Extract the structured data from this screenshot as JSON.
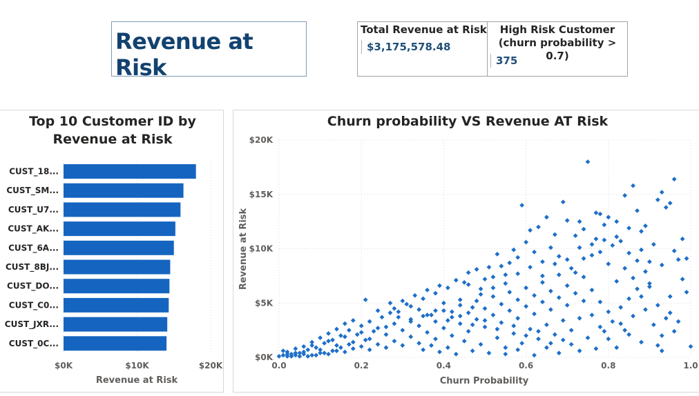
{
  "header": {
    "title": "Revenue at Risk"
  },
  "kpis": [
    {
      "label": "Total Revenue at Risk",
      "value": "$3,175,578.48"
    },
    {
      "label_line1": "High Risk Customer",
      "label_line2": "(churn probability > 0.7)",
      "value": "375"
    }
  ],
  "colors": {
    "bar": "#1565c0",
    "point": "#1e6fc8",
    "title": "#12426f",
    "kpi_value": "#1f4e79"
  },
  "chart_data": [
    {
      "type": "bar",
      "orientation": "horizontal",
      "title": "Top 10 Customer ID by Revenue at Risk",
      "title_lines": [
        "Top 10 Customer ID by",
        "Revenue at Risk"
      ],
      "categories": [
        "CUST_18...",
        "CUST_SM...",
        "CUST_U7...",
        "CUST_AK...",
        "CUST_6A...",
        "CUST_8BJ...",
        "CUST_DO...",
        "CUST_C0...",
        "CUST_JXR...",
        "CUST_0C..."
      ],
      "values": [
        18000,
        16300,
        15900,
        15200,
        15000,
        14500,
        14400,
        14300,
        14100,
        14000
      ],
      "xlabel": "Revenue at Risk",
      "ylabel": "",
      "xlim": [
        0,
        20000
      ],
      "xticks": [
        0,
        10000,
        20000
      ],
      "xtick_labels": [
        "$0K",
        "$10K",
        "$20K"
      ],
      "grid": true
    },
    {
      "type": "scatter",
      "title": "Churn probability VS Revenue AT Risk",
      "xlabel": "Churn Probability",
      "ylabel": "Revenue at Risk",
      "xlim": [
        0,
        1
      ],
      "ylim": [
        0,
        20000
      ],
      "xticks": [
        0,
        0.2,
        0.4,
        0.6,
        0.8,
        1.0
      ],
      "xtick_labels": [
        "0.0",
        "0.2",
        "0.4",
        "0.6",
        "0.8",
        "1.0"
      ],
      "yticks": [
        0,
        5000,
        10000,
        15000,
        20000
      ],
      "ytick_labels": [
        "$0K",
        "$5K",
        "$10K",
        "$15K",
        "$20K"
      ],
      "grid": true,
      "marker": "diamond",
      "points": [
        [
          0.75,
          18000
        ],
        [
          0.96,
          16400
        ],
        [
          0.86,
          15800
        ],
        [
          0.93,
          15200
        ],
        [
          0.84,
          14900
        ],
        [
          0.69,
          14300
        ],
        [
          0.59,
          14000
        ],
        [
          0.92,
          14500
        ],
        [
          0.95,
          14200
        ],
        [
          0.78,
          13200
        ],
        [
          0.8,
          12900
        ],
        [
          0.94,
          13800
        ],
        [
          0.99,
          9100
        ],
        [
          0.98,
          10900
        ],
        [
          0.7,
          12600
        ],
        [
          0.63,
          12000
        ],
        [
          0.72,
          11200
        ],
        [
          0.74,
          11800
        ],
        [
          0.77,
          10900
        ],
        [
          0.81,
          10300
        ],
        [
          0.83,
          10700
        ],
        [
          0.88,
          11600
        ],
        [
          0.91,
          10400
        ],
        [
          0.96,
          9800
        ],
        [
          0.97,
          9000
        ],
        [
          0.93,
          8500
        ],
        [
          0.89,
          7900
        ],
        [
          0.86,
          7300
        ],
        [
          0.9,
          6500
        ],
        [
          0.95,
          5600
        ],
        [
          1.0,
          1000
        ],
        [
          0.98,
          7200
        ],
        [
          0.92,
          4800
        ],
        [
          0.94,
          3600
        ],
        [
          0.96,
          2400
        ],
        [
          0.92,
          1100
        ],
        [
          0.93,
          600
        ],
        [
          0.88,
          1400
        ],
        [
          0.85,
          2100
        ],
        [
          0.83,
          3100
        ],
        [
          0.8,
          4200
        ],
        [
          0.78,
          5100
        ],
        [
          0.76,
          6200
        ],
        [
          0.74,
          7400
        ],
        [
          0.71,
          8200
        ],
        [
          0.68,
          9300
        ],
        [
          0.66,
          10100
        ],
        [
          0.64,
          8800
        ],
        [
          0.62,
          9700
        ],
        [
          0.6,
          10600
        ],
        [
          0.58,
          9200
        ],
        [
          0.56,
          8700
        ],
        [
          0.55,
          7600
        ],
        [
          0.53,
          9500
        ],
        [
          0.51,
          8300
        ],
        [
          0.5,
          7200
        ],
        [
          0.48,
          8100
        ],
        [
          0.46,
          7800
        ],
        [
          0.45,
          6900
        ],
        [
          0.43,
          7100
        ],
        [
          0.41,
          6400
        ],
        [
          0.39,
          6600
        ],
        [
          0.38,
          5900
        ],
        [
          0.36,
          6200
        ],
        [
          0.35,
          5400
        ],
        [
          0.33,
          5700
        ],
        [
          0.31,
          4900
        ],
        [
          0.3,
          5200
        ],
        [
          0.28,
          4500
        ],
        [
          0.27,
          4100
        ],
        [
          0.25,
          3700
        ],
        [
          0.24,
          4300
        ],
        [
          0.22,
          3300
        ],
        [
          0.21,
          5300
        ],
        [
          0.2,
          2900
        ],
        [
          0.18,
          3400
        ],
        [
          0.17,
          2500
        ],
        [
          0.16,
          3100
        ],
        [
          0.15,
          2000
        ],
        [
          0.14,
          2600
        ],
        [
          0.13,
          1600
        ],
        [
          0.12,
          2200
        ],
        [
          0.11,
          1300
        ],
        [
          0.1,
          1800
        ],
        [
          0.09,
          900
        ],
        [
          0.08,
          1400
        ],
        [
          0.07,
          700
        ],
        [
          0.06,
          1000
        ],
        [
          0.05,
          400
        ],
        [
          0.04,
          800
        ],
        [
          0.03,
          300
        ],
        [
          0.02,
          500
        ],
        [
          0.01,
          200
        ],
        [
          0.0,
          100
        ],
        [
          0.02,
          100
        ],
        [
          0.04,
          200
        ],
        [
          0.06,
          300
        ],
        [
          0.08,
          200
        ],
        [
          0.1,
          400
        ],
        [
          0.12,
          300
        ],
        [
          0.14,
          600
        ],
        [
          0.16,
          500
        ],
        [
          0.18,
          800
        ],
        [
          0.2,
          1000
        ],
        [
          0.22,
          700
        ],
        [
          0.24,
          1200
        ],
        [
          0.26,
          900
        ],
        [
          0.28,
          1500
        ],
        [
          0.3,
          1100
        ],
        [
          0.32,
          1900
        ],
        [
          0.34,
          1300
        ],
        [
          0.36,
          2300
        ],
        [
          0.38,
          1700
        ],
        [
          0.4,
          2700
        ],
        [
          0.42,
          2000
        ],
        [
          0.44,
          3100
        ],
        [
          0.46,
          2400
        ],
        [
          0.48,
          3500
        ],
        [
          0.5,
          2800
        ],
        [
          0.52,
          3900
        ],
        [
          0.54,
          3200
        ],
        [
          0.56,
          4300
        ],
        [
          0.58,
          3600
        ],
        [
          0.6,
          4700
        ],
        [
          0.62,
          4000
        ],
        [
          0.64,
          5100
        ],
        [
          0.66,
          4400
        ],
        [
          0.68,
          5500
        ],
        [
          0.7,
          4800
        ],
        [
          0.72,
          5900
        ],
        [
          0.74,
          5200
        ],
        [
          0.76,
          3900
        ],
        [
          0.78,
          2800
        ],
        [
          0.8,
          1700
        ],
        [
          0.82,
          900
        ],
        [
          0.84,
          2500
        ],
        [
          0.86,
          3800
        ],
        [
          0.88,
          5600
        ],
        [
          0.9,
          6800
        ],
        [
          0.87,
          8900
        ],
        [
          0.85,
          9600
        ],
        [
          0.82,
          11100
        ],
        [
          0.79,
          12200
        ],
        [
          0.77,
          13300
        ],
        [
          0.73,
          12500
        ],
        [
          0.67,
          11300
        ],
        [
          0.65,
          12900
        ],
        [
          0.61,
          11700
        ],
        [
          0.57,
          9900
        ],
        [
          0.54,
          8400
        ],
        [
          0.52,
          6400
        ],
        [
          0.49,
          5800
        ],
        [
          0.47,
          4600
        ],
        [
          0.44,
          5300
        ],
        [
          0.42,
          4200
        ],
        [
          0.4,
          5000
        ],
        [
          0.37,
          3900
        ],
        [
          0.34,
          4400
        ],
        [
          0.32,
          3300
        ],
        [
          0.29,
          3700
        ],
        [
          0.26,
          2800
        ],
        [
          0.23,
          2400
        ],
        [
          0.21,
          1600
        ],
        [
          0.19,
          2100
        ],
        [
          0.17,
          1200
        ],
        [
          0.15,
          900
        ],
        [
          0.13,
          600
        ],
        [
          0.11,
          400
        ],
        [
          0.09,
          200
        ],
        [
          0.07,
          100
        ],
        [
          0.05,
          100
        ],
        [
          0.03,
          100
        ],
        [
          0.35,
          700
        ],
        [
          0.37,
          1100
        ],
        [
          0.39,
          500
        ],
        [
          0.41,
          900
        ],
        [
          0.43,
          300
        ],
        [
          0.45,
          1500
        ],
        [
          0.47,
          600
        ],
        [
          0.49,
          1200
        ],
        [
          0.51,
          400
        ],
        [
          0.53,
          1800
        ],
        [
          0.55,
          900
        ],
        [
          0.57,
          2200
        ],
        [
          0.59,
          1300
        ],
        [
          0.61,
          2600
        ],
        [
          0.63,
          1700
        ],
        [
          0.65,
          3000
        ],
        [
          0.67,
          2100
        ],
        [
          0.69,
          3400
        ],
        [
          0.71,
          2500
        ],
        [
          0.73,
          3600
        ],
        [
          0.75,
          1800
        ],
        [
          0.77,
          800
        ],
        [
          0.79,
          2400
        ],
        [
          0.81,
          3300
        ],
        [
          0.83,
          4600
        ],
        [
          0.85,
          5400
        ],
        [
          0.87,
          6300
        ],
        [
          0.89,
          4400
        ],
        [
          0.91,
          3000
        ],
        [
          0.93,
          2000
        ],
        [
          0.95,
          4100
        ],
        [
          0.97,
          3300
        ],
        [
          0.99,
          6000
        ],
        [
          0.9,
          8800
        ],
        [
          0.88,
          9900
        ],
        [
          0.84,
          8200
        ],
        [
          0.82,
          7000
        ],
        [
          0.8,
          8600
        ],
        [
          0.78,
          9700
        ],
        [
          0.76,
          10400
        ],
        [
          0.74,
          9100
        ],
        [
          0.72,
          7800
        ],
        [
          0.7,
          6600
        ],
        [
          0.68,
          7600
        ],
        [
          0.66,
          6100
        ],
        [
          0.64,
          6900
        ],
        [
          0.62,
          5700
        ],
        [
          0.6,
          6400
        ],
        [
          0.58,
          5300
        ],
        [
          0.56,
          6000
        ],
        [
          0.54,
          4900
        ],
        [
          0.52,
          5600
        ],
        [
          0.5,
          4500
        ],
        [
          0.48,
          5200
        ],
        [
          0.46,
          4100
        ],
        [
          0.44,
          4800
        ],
        [
          0.42,
          3700
        ],
        [
          0.4,
          4300
        ],
        [
          0.38,
          3300
        ],
        [
          0.36,
          3900
        ],
        [
          0.34,
          2900
        ],
        [
          0.32,
          3500
        ],
        [
          0.3,
          2500
        ],
        [
          0.28,
          3100
        ],
        [
          0.26,
          2100
        ],
        [
          0.24,
          2700
        ],
        [
          0.22,
          1700
        ],
        [
          0.2,
          2300
        ],
        [
          0.18,
          1400
        ],
        [
          0.16,
          1900
        ],
        [
          0.14,
          1100
        ],
        [
          0.12,
          1500
        ],
        [
          0.1,
          700
        ],
        [
          0.08,
          1100
        ],
        [
          0.06,
          500
        ],
        [
          0.04,
          400
        ],
        [
          0.02,
          300
        ],
        [
          0.01,
          600
        ],
        [
          0.55,
          300
        ],
        [
          0.58,
          700
        ],
        [
          0.62,
          200
        ],
        [
          0.65,
          900
        ],
        [
          0.68,
          400
        ],
        [
          0.71,
          1200
        ],
        [
          0.73,
          600
        ],
        [
          0.69,
          1600
        ],
        [
          0.66,
          1300
        ],
        [
          0.63,
          2400
        ],
        [
          0.6,
          2000
        ],
        [
          0.57,
          2900
        ],
        [
          0.53,
          2600
        ],
        [
          0.5,
          3400
        ],
        [
          0.47,
          3000
        ],
        [
          0.44,
          3800
        ],
        [
          0.41,
          3400
        ],
        [
          0.38,
          4300
        ],
        [
          0.35,
          3800
        ],
        [
          0.32,
          4700
        ],
        [
          0.29,
          4200
        ],
        [
          0.27,
          5000
        ],
        [
          0.46,
          6700
        ],
        [
          0.49,
          6300
        ],
        [
          0.52,
          7400
        ],
        [
          0.55,
          6800
        ],
        [
          0.58,
          7700
        ],
        [
          0.61,
          8300
        ],
        [
          0.64,
          7500
        ],
        [
          0.67,
          8600
        ],
        [
          0.7,
          9000
        ],
        [
          0.73,
          10100
        ],
        [
          0.76,
          9400
        ],
        [
          0.79,
          10800
        ],
        [
          0.82,
          12500
        ],
        [
          0.85,
          11900
        ],
        [
          0.87,
          13500
        ],
        [
          0.89,
          12100
        ]
      ]
    }
  ]
}
